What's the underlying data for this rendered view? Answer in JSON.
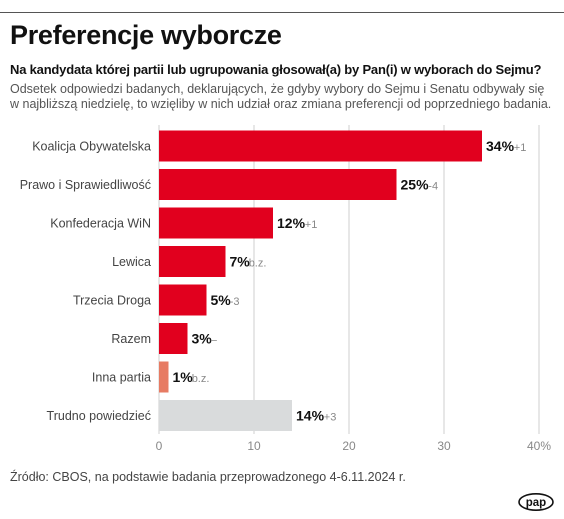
{
  "header": {
    "title": "Preferencje wyborcze",
    "subtitle": "Na kandydata której partii lub ugrupowania głosował(a) by Pan(i) w wyborach do Sejmu?",
    "description": "Odsetek odpowiedzi badanych, deklarujących, że gdyby wybory do Sejmu i Senatu odbywały się w najbliższą niedzielę, to wzięliby w nich udział oraz zmiana preferencji od poprzedniego badania."
  },
  "footer": {
    "source": "Źródło: CBOS, na podstawie badania przeprowadzonego 4-6.11.2024 r.",
    "logo_text": "pap"
  },
  "colors": {
    "party": "#e1001e",
    "inna": "#e77b63",
    "undecided": "#d9dbdc",
    "gridline": "#cfcfcf",
    "change": "#888888"
  },
  "chart_data": {
    "type": "bar",
    "orientation": "horizontal",
    "categories": [
      "Koalicja Obywatelska",
      "Prawo i Sprawiedliwość",
      "Konfederacja WiN",
      "Lewica",
      "Trzecia Droga",
      "Razem",
      "Inna partia",
      "Trudno powiedzieć"
    ],
    "values": [
      34,
      25,
      12,
      7,
      5,
      3,
      1,
      14
    ],
    "value_labels": [
      "34%",
      "25%",
      "12%",
      "7%",
      "5%",
      "3%",
      "1%",
      "14%"
    ],
    "change_labels": [
      "+1",
      "-4",
      "+1",
      "b.z.",
      "-3",
      "–",
      "b.z.",
      "+3"
    ],
    "bar_colors": [
      "party",
      "party",
      "party",
      "party",
      "party",
      "party",
      "inna",
      "undecided"
    ],
    "xlim": [
      0,
      40
    ],
    "x_ticks": [
      "0",
      "10",
      "20",
      "30",
      "40%"
    ],
    "x_tick_values": [
      0,
      10,
      20,
      30,
      40
    ],
    "grid": true
  }
}
